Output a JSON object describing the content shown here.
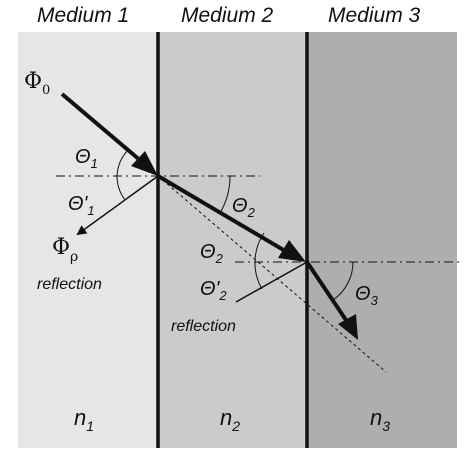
{
  "headers": {
    "medium1": "Medium 1",
    "medium2": "Medium 2",
    "medium3": "Medium 3"
  },
  "colors": {
    "medium1": "#e6e6e6",
    "medium2": "#cbcbcb",
    "medium3": "#aeaeae",
    "ink": "#111111"
  },
  "labels": {
    "phi0_symbol": "Φ",
    "phi0_sub": "0",
    "phir_symbol": "Φ",
    "phir_sub": "ρ",
    "theta1": "Θ",
    "theta1_sub": "1",
    "theta1p": "Θ'",
    "theta1p_sub": "1",
    "theta2a": "Θ",
    "theta2a_sub": "2",
    "theta2b": "Θ",
    "theta2b_sub": "2",
    "theta2p": "Θ'",
    "theta2p_sub": "2",
    "theta3": "Θ",
    "theta3_sub": "3",
    "reflection1": "reflection",
    "reflection2": "reflection"
  },
  "indices": [
    {
      "symbol": "n",
      "sub": "1"
    },
    {
      "symbol": "n",
      "sub": "2"
    },
    {
      "symbol": "n",
      "sub": "3"
    }
  ]
}
